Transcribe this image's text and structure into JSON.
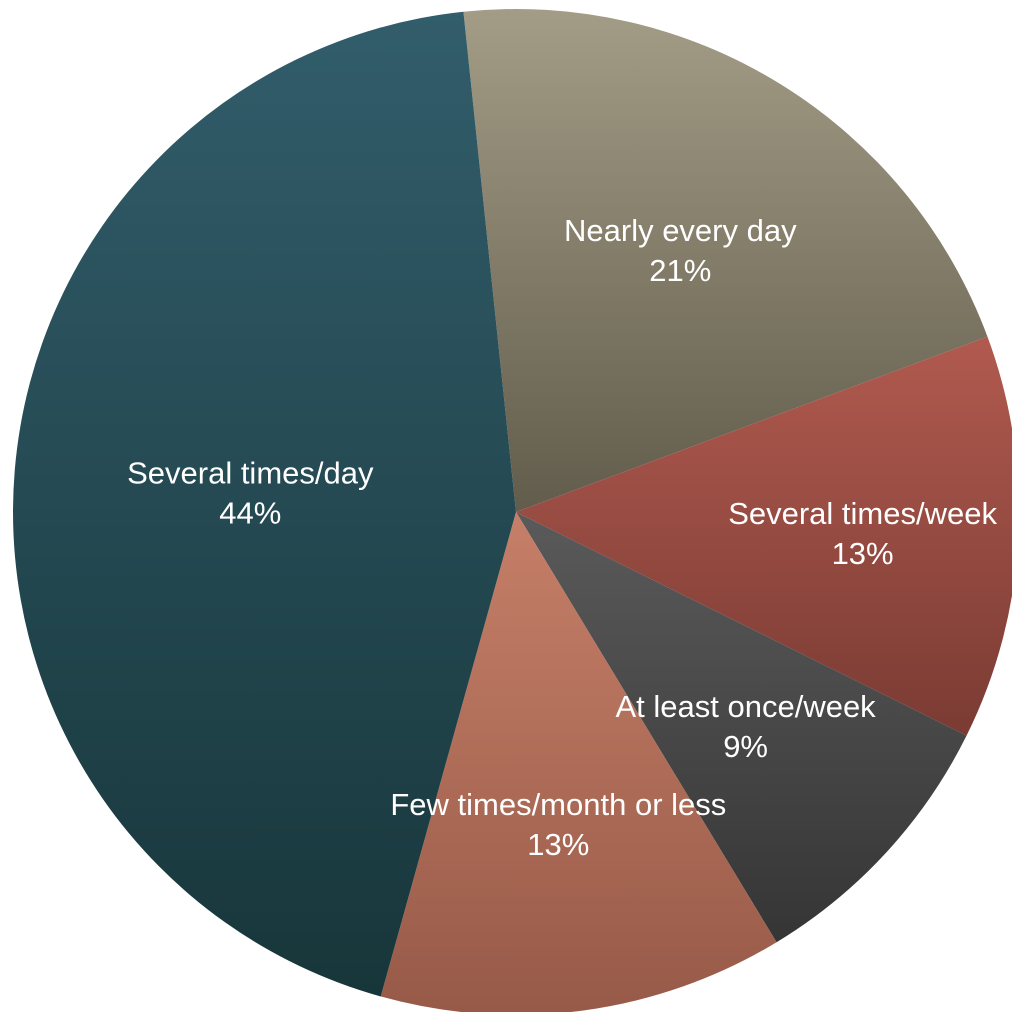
{
  "chart_data": {
    "type": "pie",
    "title": "",
    "legend": "none",
    "slices": [
      {
        "label": "Nearly every day",
        "pct_label": "21%",
        "value": 21,
        "color_top": "#a39c86",
        "color_bottom": "#625c4c"
      },
      {
        "label": "Several times/week",
        "pct_label": "13%",
        "value": 13,
        "color_top": "#b15a4f",
        "color_bottom": "#7a3b33"
      },
      {
        "label": "At least once/week",
        "pct_label": "9%",
        "value": 9,
        "color_top": "#5a5a5a",
        "color_bottom": "#353535"
      },
      {
        "label": "Few times/month or less",
        "pct_label": "13%",
        "value": 13,
        "color_top": "#c67f68",
        "color_bottom": "#975a48"
      },
      {
        "label": "Several times/day",
        "pct_label": "44%",
        "value": 44,
        "color_top": "#325d6b",
        "color_bottom": "#17363a"
      }
    ]
  }
}
